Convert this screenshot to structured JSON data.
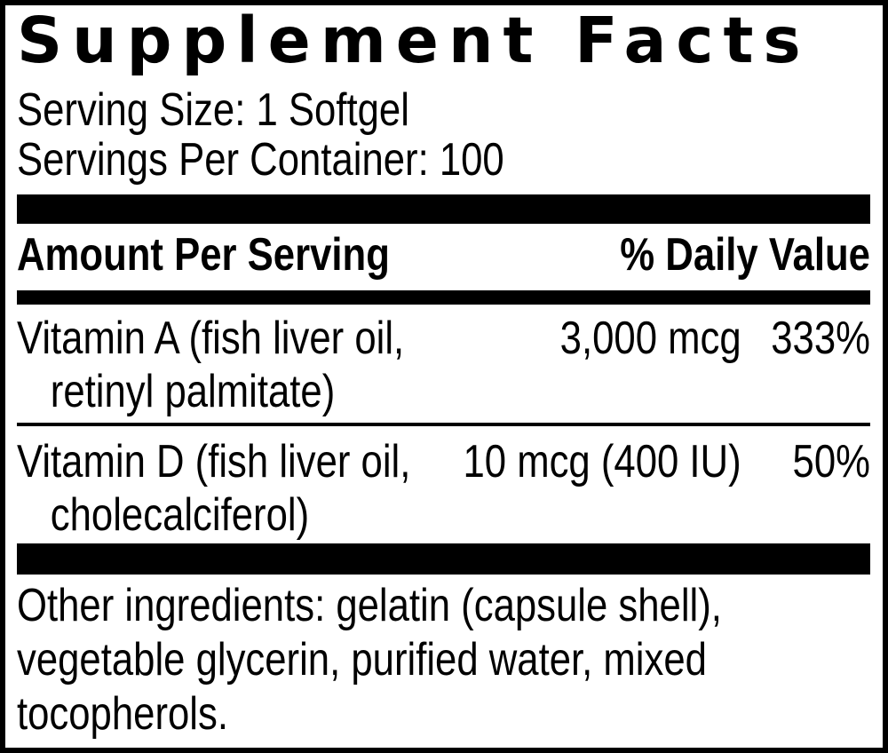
{
  "panel": {
    "title": "Supplement Facts",
    "serving": {
      "size_line": "Serving Size: 1 Softgel",
      "per_container_line": "Servings Per Container: 100"
    },
    "table_header": {
      "amount_label": "Amount Per Serving",
      "daily_value_label": "% Daily Value"
    },
    "nutrients": [
      {
        "name_line1": "Vitamin A (fish liver oil,",
        "name_line2": "retinyl palmitate)",
        "amount": "3,000 mcg",
        "daily_value": "333%"
      },
      {
        "name_line1": "Vitamin D (fish liver oil,",
        "name_line2": "cholecalciferol)",
        "amount": "10 mcg (400 IU)",
        "daily_value": "50%"
      }
    ],
    "other_ingredients": "Other ingredients: gelatin (capsule shell), vegetable glycerin, purified water, mixed tocopherols.",
    "colors": {
      "text": "#000000",
      "background": "#ffffff",
      "border": "#000000",
      "bar": "#000000"
    }
  }
}
